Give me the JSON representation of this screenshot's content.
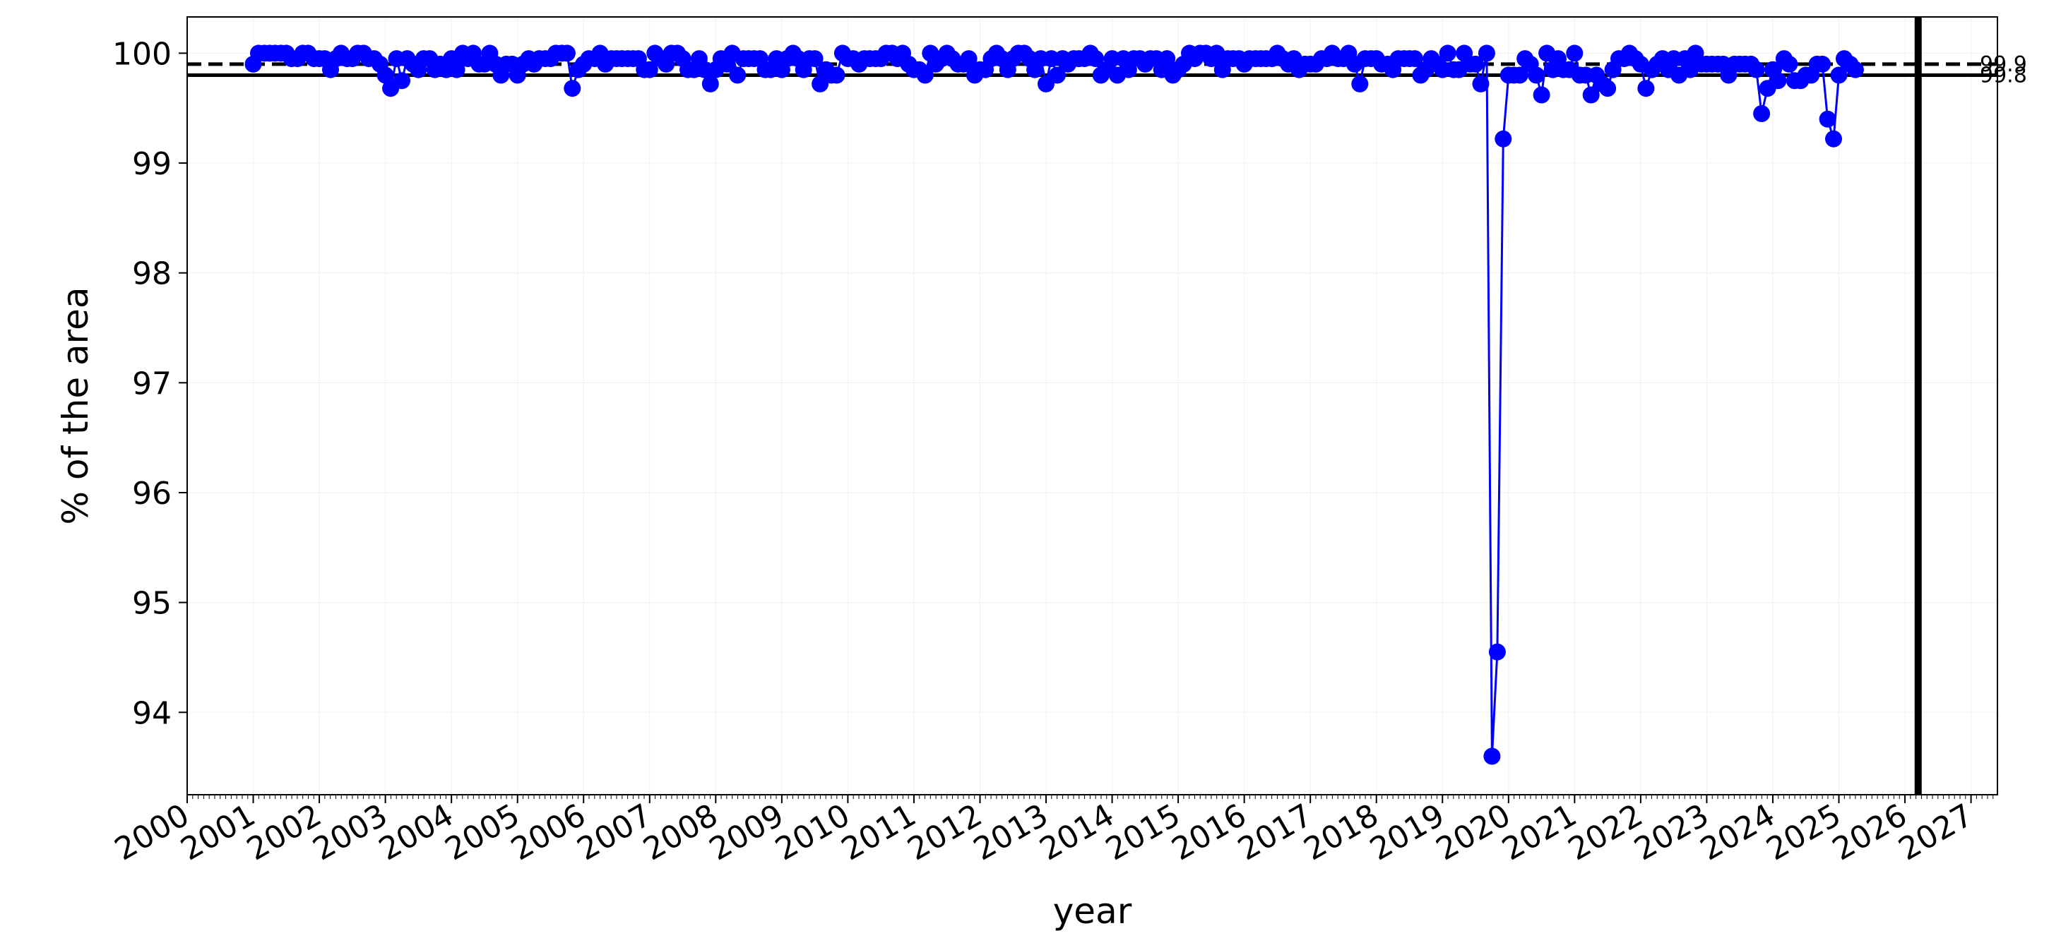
{
  "chart_data": {
    "type": "line",
    "xlabel": "year",
    "ylabel": "% of the area",
    "x_ticks": [
      "2000",
      "2001",
      "2002",
      "2003",
      "2004",
      "2005",
      "2006",
      "2007",
      "2008",
      "2009",
      "2010",
      "2011",
      "2012",
      "2013",
      "2014",
      "2015",
      "2016",
      "2017",
      "2018",
      "2019",
      "2020",
      "2021",
      "2022",
      "2023",
      "2024",
      "2025",
      "2026",
      "2027"
    ],
    "y_ticks": [
      "94",
      "95",
      "96",
      "97",
      "98",
      "99",
      "100"
    ],
    "xlim": [
      2000.0,
      2027.4
    ],
    "ylim": [
      93.25,
      100.33
    ],
    "reference_lines": [
      {
        "label": "99.9",
        "value": 99.9,
        "style": "dashed"
      },
      {
        "label": "99.8",
        "value": 99.8,
        "style": "solid"
      }
    ],
    "vertical_marker": {
      "x": 2026.2
    },
    "series": [
      {
        "color": "#0000ff",
        "points": [
          [
            2001.0,
            99.9
          ],
          [
            2001.08,
            100.0
          ],
          [
            2001.17,
            100.0
          ],
          [
            2001.25,
            100.0
          ],
          [
            2001.33,
            100.0
          ],
          [
            2001.42,
            100.0
          ],
          [
            2001.5,
            100.0
          ],
          [
            2001.58,
            99.95
          ],
          [
            2001.67,
            99.95
          ],
          [
            2001.75,
            100.0
          ],
          [
            2001.83,
            100.0
          ],
          [
            2001.92,
            99.95
          ],
          [
            2002.0,
            99.95
          ],
          [
            2002.08,
            99.95
          ],
          [
            2002.17,
            99.85
          ],
          [
            2002.25,
            99.95
          ],
          [
            2002.33,
            100.0
          ],
          [
            2002.42,
            99.95
          ],
          [
            2002.5,
            99.95
          ],
          [
            2002.58,
            100.0
          ],
          [
            2002.67,
            100.0
          ],
          [
            2002.75,
            99.95
          ],
          [
            2002.83,
            99.95
          ],
          [
            2002.92,
            99.9
          ],
          [
            2003.0,
            99.8
          ],
          [
            2003.08,
            99.68
          ],
          [
            2003.17,
            99.95
          ],
          [
            2003.25,
            99.75
          ],
          [
            2003.33,
            99.95
          ],
          [
            2003.42,
            99.9
          ],
          [
            2003.5,
            99.85
          ],
          [
            2003.58,
            99.95
          ],
          [
            2003.67,
            99.95
          ],
          [
            2003.75,
            99.85
          ],
          [
            2003.83,
            99.9
          ],
          [
            2003.92,
            99.85
          ],
          [
            2004.0,
            99.95
          ],
          [
            2004.08,
            99.85
          ],
          [
            2004.17,
            100.0
          ],
          [
            2004.25,
            99.95
          ],
          [
            2004.33,
            100.0
          ],
          [
            2004.42,
            99.9
          ],
          [
            2004.5,
            99.9
          ],
          [
            2004.58,
            100.0
          ],
          [
            2004.67,
            99.9
          ],
          [
            2004.75,
            99.8
          ],
          [
            2004.83,
            99.9
          ],
          [
            2004.92,
            99.9
          ],
          [
            2005.0,
            99.8
          ],
          [
            2005.08,
            99.9
          ],
          [
            2005.17,
            99.95
          ],
          [
            2005.25,
            99.9
          ],
          [
            2005.33,
            99.95
          ],
          [
            2005.42,
            99.95
          ],
          [
            2005.5,
            99.95
          ],
          [
            2005.58,
            100.0
          ],
          [
            2005.67,
            100.0
          ],
          [
            2005.75,
            100.0
          ],
          [
            2005.83,
            99.68
          ],
          [
            2005.92,
            99.85
          ],
          [
            2006.0,
            99.9
          ],
          [
            2006.08,
            99.95
          ],
          [
            2006.17,
            99.95
          ],
          [
            2006.25,
            100.0
          ],
          [
            2006.33,
            99.9
          ],
          [
            2006.42,
            99.95
          ],
          [
            2006.5,
            99.95
          ],
          [
            2006.58,
            99.95
          ],
          [
            2006.67,
            99.95
          ],
          [
            2006.75,
            99.95
          ],
          [
            2006.83,
            99.95
          ],
          [
            2006.92,
            99.85
          ],
          [
            2007.0,
            99.85
          ],
          [
            2007.08,
            100.0
          ],
          [
            2007.17,
            99.95
          ],
          [
            2007.25,
            99.9
          ],
          [
            2007.33,
            100.0
          ],
          [
            2007.42,
            100.0
          ],
          [
            2007.5,
            99.95
          ],
          [
            2007.58,
            99.85
          ],
          [
            2007.67,
            99.85
          ],
          [
            2007.75,
            99.95
          ],
          [
            2007.83,
            99.85
          ],
          [
            2007.92,
            99.72
          ],
          [
            2008.0,
            99.85
          ],
          [
            2008.08,
            99.95
          ],
          [
            2008.17,
            99.9
          ],
          [
            2008.25,
            100.0
          ],
          [
            2008.33,
            99.8
          ],
          [
            2008.42,
            99.95
          ],
          [
            2008.5,
            99.95
          ],
          [
            2008.58,
            99.95
          ],
          [
            2008.67,
            99.95
          ],
          [
            2008.75,
            99.85
          ],
          [
            2008.83,
            99.85
          ],
          [
            2008.92,
            99.95
          ],
          [
            2009.0,
            99.85
          ],
          [
            2009.08,
            99.95
          ],
          [
            2009.17,
            100.0
          ],
          [
            2009.25,
            99.95
          ],
          [
            2009.33,
            99.85
          ],
          [
            2009.42,
            99.95
          ],
          [
            2009.5,
            99.95
          ],
          [
            2009.58,
            99.72
          ],
          [
            2009.67,
            99.85
          ],
          [
            2009.75,
            99.8
          ],
          [
            2009.83,
            99.8
          ],
          [
            2009.92,
            100.0
          ],
          [
            2010.0,
            99.95
          ],
          [
            2010.08,
            99.95
          ],
          [
            2010.17,
            99.9
          ],
          [
            2010.25,
            99.95
          ],
          [
            2010.33,
            99.95
          ],
          [
            2010.42,
            99.95
          ],
          [
            2010.5,
            99.95
          ],
          [
            2010.58,
            100.0
          ],
          [
            2010.67,
            100.0
          ],
          [
            2010.75,
            99.95
          ],
          [
            2010.83,
            100.0
          ],
          [
            2010.92,
            99.9
          ],
          [
            2011.0,
            99.85
          ],
          [
            2011.08,
            99.85
          ],
          [
            2011.17,
            99.8
          ],
          [
            2011.25,
            100.0
          ],
          [
            2011.33,
            99.9
          ],
          [
            2011.42,
            99.95
          ],
          [
            2011.5,
            100.0
          ],
          [
            2011.58,
            99.95
          ],
          [
            2011.67,
            99.9
          ],
          [
            2011.75,
            99.9
          ],
          [
            2011.83,
            99.95
          ],
          [
            2011.92,
            99.8
          ],
          [
            2012.0,
            99.85
          ],
          [
            2012.08,
            99.85
          ],
          [
            2012.17,
            99.95
          ],
          [
            2012.25,
            100.0
          ],
          [
            2012.33,
            99.95
          ],
          [
            2012.42,
            99.85
          ],
          [
            2012.5,
            99.95
          ],
          [
            2012.58,
            100.0
          ],
          [
            2012.67,
            100.0
          ],
          [
            2012.75,
            99.95
          ],
          [
            2012.83,
            99.85
          ],
          [
            2012.92,
            99.95
          ],
          [
            2013.0,
            99.72
          ],
          [
            2013.08,
            99.95
          ],
          [
            2013.17,
            99.8
          ],
          [
            2013.25,
            99.95
          ],
          [
            2013.33,
            99.9
          ],
          [
            2013.42,
            99.95
          ],
          [
            2013.5,
            99.95
          ],
          [
            2013.58,
            99.95
          ],
          [
            2013.67,
            100.0
          ],
          [
            2013.75,
            99.95
          ],
          [
            2013.83,
            99.8
          ],
          [
            2013.92,
            99.85
          ],
          [
            2014.0,
            99.95
          ],
          [
            2014.08,
            99.8
          ],
          [
            2014.17,
            99.95
          ],
          [
            2014.25,
            99.85
          ],
          [
            2014.33,
            99.95
          ],
          [
            2014.42,
            99.95
          ],
          [
            2014.5,
            99.9
          ],
          [
            2014.58,
            99.95
          ],
          [
            2014.67,
            99.95
          ],
          [
            2014.75,
            99.85
          ],
          [
            2014.83,
            99.95
          ],
          [
            2014.92,
            99.8
          ],
          [
            2015.0,
            99.85
          ],
          [
            2015.08,
            99.9
          ],
          [
            2015.17,
            100.0
          ],
          [
            2015.25,
            99.95
          ],
          [
            2015.33,
            100.0
          ],
          [
            2015.42,
            100.0
          ],
          [
            2015.5,
            99.95
          ],
          [
            2015.58,
            100.0
          ],
          [
            2015.67,
            99.85
          ],
          [
            2015.75,
            99.95
          ],
          [
            2015.83,
            99.95
          ],
          [
            2015.92,
            99.95
          ],
          [
            2016.0,
            99.9
          ],
          [
            2016.08,
            99.95
          ],
          [
            2016.17,
            99.95
          ],
          [
            2016.25,
            99.95
          ],
          [
            2016.33,
            99.95
          ],
          [
            2016.42,
            99.95
          ],
          [
            2016.5,
            100.0
          ],
          [
            2016.58,
            99.95
          ],
          [
            2016.67,
            99.9
          ],
          [
            2016.75,
            99.95
          ],
          [
            2016.83,
            99.85
          ],
          [
            2016.92,
            99.9
          ],
          [
            2017.0,
            99.9
          ],
          [
            2017.08,
            99.9
          ],
          [
            2017.17,
            99.95
          ],
          [
            2017.25,
            99.95
          ],
          [
            2017.33,
            100.0
          ],
          [
            2017.42,
            99.95
          ],
          [
            2017.5,
            99.95
          ],
          [
            2017.58,
            100.0
          ],
          [
            2017.67,
            99.9
          ],
          [
            2017.75,
            99.72
          ],
          [
            2017.83,
            99.95
          ],
          [
            2017.92,
            99.95
          ],
          [
            2018.0,
            99.95
          ],
          [
            2018.08,
            99.9
          ],
          [
            2018.17,
            99.9
          ],
          [
            2018.25,
            99.85
          ],
          [
            2018.33,
            99.95
          ],
          [
            2018.42,
            99.95
          ],
          [
            2018.5,
            99.95
          ],
          [
            2018.58,
            99.95
          ],
          [
            2018.67,
            99.8
          ],
          [
            2018.75,
            99.85
          ],
          [
            2018.83,
            99.95
          ],
          [
            2018.92,
            99.9
          ],
          [
            2019.0,
            99.85
          ],
          [
            2019.08,
            100.0
          ],
          [
            2019.17,
            99.85
          ],
          [
            2019.25,
            99.85
          ],
          [
            2019.33,
            100.0
          ],
          [
            2019.42,
            99.9
          ],
          [
            2019.5,
            99.9
          ],
          [
            2019.58,
            99.72
          ],
          [
            2019.67,
            100.0
          ],
          [
            2019.75,
            93.6
          ],
          [
            2019.83,
            94.55
          ],
          [
            2019.92,
            99.22
          ],
          [
            2020.0,
            99.8
          ],
          [
            2020.08,
            99.8
          ],
          [
            2020.17,
            99.8
          ],
          [
            2020.25,
            99.95
          ],
          [
            2020.33,
            99.9
          ],
          [
            2020.42,
            99.8
          ],
          [
            2020.5,
            99.62
          ],
          [
            2020.58,
            100.0
          ],
          [
            2020.67,
            99.85
          ],
          [
            2020.75,
            99.95
          ],
          [
            2020.83,
            99.85
          ],
          [
            2020.92,
            99.85
          ],
          [
            2021.0,
            100.0
          ],
          [
            2021.08,
            99.8
          ],
          [
            2021.17,
            99.8
          ],
          [
            2021.25,
            99.62
          ],
          [
            2021.33,
            99.8
          ],
          [
            2021.42,
            99.72
          ],
          [
            2021.5,
            99.68
          ],
          [
            2021.58,
            99.85
          ],
          [
            2021.67,
            99.95
          ],
          [
            2021.75,
            99.95
          ],
          [
            2021.83,
            100.0
          ],
          [
            2021.92,
            99.95
          ],
          [
            2022.0,
            99.9
          ],
          [
            2022.08,
            99.68
          ],
          [
            2022.17,
            99.85
          ],
          [
            2022.25,
            99.9
          ],
          [
            2022.33,
            99.95
          ],
          [
            2022.42,
            99.85
          ],
          [
            2022.5,
            99.95
          ],
          [
            2022.58,
            99.8
          ],
          [
            2022.67,
            99.95
          ],
          [
            2022.75,
            99.85
          ],
          [
            2022.83,
            100.0
          ],
          [
            2022.92,
            99.9
          ],
          [
            2023.0,
            99.9
          ],
          [
            2023.08,
            99.9
          ],
          [
            2023.17,
            99.9
          ],
          [
            2023.25,
            99.9
          ],
          [
            2023.33,
            99.8
          ],
          [
            2023.42,
            99.9
          ],
          [
            2023.5,
            99.9
          ],
          [
            2023.58,
            99.9
          ],
          [
            2023.67,
            99.9
          ],
          [
            2023.75,
            99.85
          ],
          [
            2023.83,
            99.45
          ],
          [
            2023.92,
            99.68
          ],
          [
            2024.0,
            99.85
          ],
          [
            2024.08,
            99.75
          ],
          [
            2024.17,
            99.95
          ],
          [
            2024.25,
            99.9
          ],
          [
            2024.33,
            99.75
          ],
          [
            2024.42,
            99.75
          ],
          [
            2024.5,
            99.8
          ],
          [
            2024.58,
            99.8
          ],
          [
            2024.67,
            99.9
          ],
          [
            2024.75,
            99.9
          ],
          [
            2024.83,
            99.4
          ],
          [
            2024.92,
            99.22
          ],
          [
            2025.0,
            99.8
          ],
          [
            2025.08,
            99.95
          ],
          [
            2025.17,
            99.9
          ],
          [
            2025.25,
            99.85
          ]
        ]
      }
    ]
  }
}
